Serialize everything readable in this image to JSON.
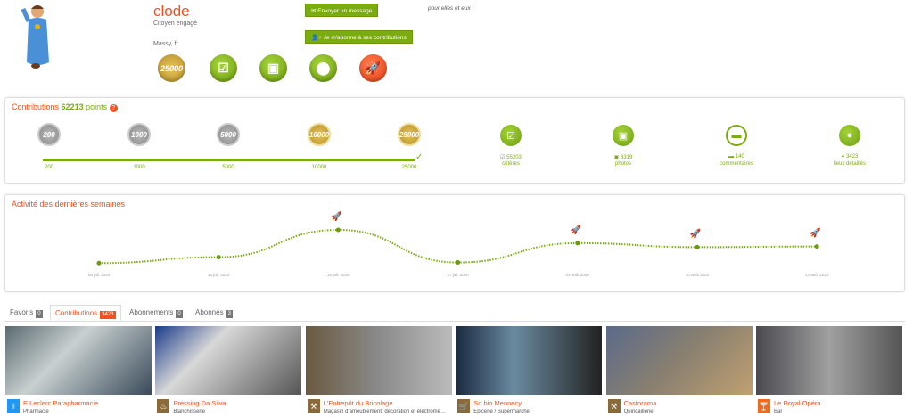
{
  "profile": {
    "name": "clode",
    "status": "Citoyen engagé",
    "location": "Massy, fr",
    "slogan": "pour elles et eux !",
    "send_message": "Envoyer un message",
    "subscribe": "Je m'abonne à ses contributions",
    "badges": [
      {
        "icon": "medal-25000-icon",
        "label": "25000"
      },
      {
        "icon": "check-icon"
      },
      {
        "icon": "photo-icon"
      },
      {
        "icon": "location-pin-icon"
      },
      {
        "icon": "rocket-icon"
      }
    ]
  },
  "contributions": {
    "title": "Contributions",
    "points": "62213",
    "points_label": "points",
    "help": "?",
    "levels": [
      "200",
      "1000",
      "5000",
      "10000",
      "25000"
    ],
    "progress_percent": 100,
    "stats": [
      {
        "icon": "check-icon",
        "value": "55203",
        "label": "critères"
      },
      {
        "icon": "photo-icon",
        "value": "3319",
        "label": "photos"
      },
      {
        "icon": "comment-icon",
        "value": "140",
        "label": "commentaires"
      },
      {
        "icon": "location-pin-icon",
        "value": "3423",
        "label": "lieux détaillés"
      }
    ]
  },
  "activity": {
    "title": "Activité des dernières semaines",
    "chart_data": {
      "type": "line",
      "x": [
        "06 juil. 2020",
        "13 juil. 2020",
        "20 juil. 2020",
        "27 juil. 2020",
        "03 août 2020",
        "10 août 2020",
        "17 août 2020"
      ],
      "values": [
        1,
        2.8,
        11,
        1.2,
        7,
        5.8,
        6
      ],
      "rocket_markers": [
        false,
        false,
        true,
        false,
        true,
        true,
        true
      ]
    }
  },
  "tabs": [
    {
      "label": "Favoris",
      "count": "0"
    },
    {
      "label": "Contributions",
      "count": "3423",
      "active": true
    },
    {
      "label": "Abonnements",
      "count": "0"
    },
    {
      "label": "Abonnés",
      "count": "3"
    }
  ],
  "places": [
    {
      "name": "E.Leclerc Parapharmacie",
      "category": "Pharmacie",
      "color": "#2196f3"
    },
    {
      "name": "Pressing Da Silva",
      "category": "Blanchisserie",
      "color": "#8b6a3a"
    },
    {
      "name": "L'Entrepôt du Bricolage",
      "category": "Magasin d'ameublement, décoration et électroménager",
      "color": "#8b6a3a"
    },
    {
      "name": "So.bio Mennecy",
      "category": "Épicerie / Supermarché",
      "color": "#8b6a3a"
    },
    {
      "name": "Castorama",
      "category": "Quincaillerie",
      "color": "#8b6a3a"
    },
    {
      "name": "Le Royal Opéra",
      "category": "Bar",
      "color": "#f06a1e"
    }
  ]
}
